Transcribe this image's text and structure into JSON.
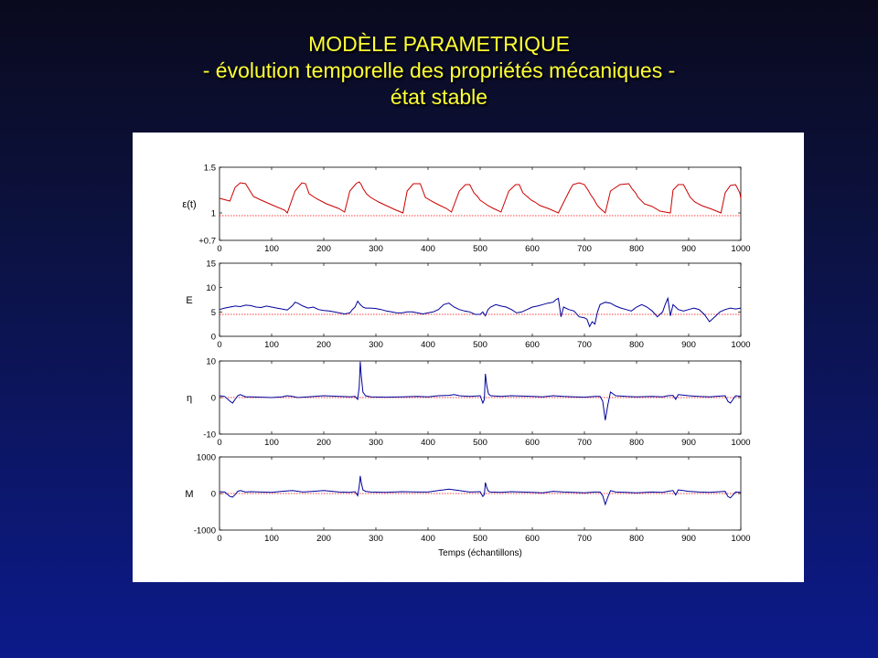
{
  "slide": {
    "title_line1": "MODÈLE PARAMETRIQUE",
    "title_line2": "- évolution temporelle des propriétés mécaniques -",
    "title_line3": "état stable"
  },
  "colors": {
    "background_top": "#0a0a1e",
    "background_bottom": "#0c1a8a",
    "title": "#ffff33",
    "series_red": "#cc0000",
    "series_blue": "#000099",
    "reference_line": "#ff0000"
  },
  "chart_data": [
    {
      "type": "line",
      "ylabel": "ε(t)",
      "xlim": [
        0,
        1000
      ],
      "ylim": [
        0.7,
        1.5
      ],
      "xticks": [
        "0",
        "100",
        "200",
        "300",
        "400",
        "500",
        "600",
        "700",
        "800",
        "900",
        "1000"
      ],
      "yticks": [
        {
          "value": 1.5,
          "label": "1.5"
        },
        {
          "value": 1,
          "label": "1"
        },
        {
          "value": 0.7,
          "label": "+0.7"
        }
      ],
      "reference": 0.97,
      "series_color": "#cc0000",
      "series": [
        {
          "x": [
            0,
            20,
            30,
            40,
            50,
            65,
            80,
            100,
            125,
            130,
            145,
            158,
            165,
            172,
            185,
            205,
            228,
            240,
            250,
            262,
            268,
            272,
            275,
            282,
            290,
            305,
            320,
            335,
            352,
            360,
            372,
            385,
            395,
            410,
            420,
            435,
            445,
            460,
            472,
            480,
            488,
            495,
            500,
            505,
            515,
            525,
            540,
            555,
            568,
            575,
            582,
            590,
            598,
            605,
            615,
            630,
            650,
            672,
            678,
            690,
            700,
            708,
            712,
            718,
            722,
            725,
            730,
            740,
            750,
            768,
            785,
            792,
            798,
            803,
            815,
            830,
            845,
            865,
            870,
            880,
            890,
            903,
            912,
            925,
            945,
            962,
            970,
            980,
            990,
            998,
            1000
          ],
          "y": [
            1.16,
            1.13,
            1.28,
            1.33,
            1.32,
            1.18,
            1.14,
            1.09,
            1.03,
            1.0,
            1.24,
            1.33,
            1.32,
            1.21,
            1.16,
            1.1,
            1.05,
            1.01,
            1.24,
            1.32,
            1.34,
            1.31,
            1.27,
            1.21,
            1.17,
            1.12,
            1.08,
            1.04,
            1.0,
            1.24,
            1.32,
            1.32,
            1.17,
            1.12,
            1.09,
            1.05,
            1.01,
            1.24,
            1.31,
            1.31,
            1.22,
            1.18,
            1.14,
            1.12,
            1.08,
            1.05,
            1.01,
            1.24,
            1.31,
            1.31,
            1.22,
            1.18,
            1.14,
            1.12,
            1.08,
            1.05,
            1.0,
            1.25,
            1.31,
            1.33,
            1.31,
            1.24,
            1.2,
            1.15,
            1.11,
            1.08,
            1.05,
            1.0,
            1.24,
            1.31,
            1.32,
            1.26,
            1.22,
            1.17,
            1.1,
            1.07,
            1.02,
            1.0,
            1.25,
            1.31,
            1.31,
            1.17,
            1.12,
            1.08,
            1.04,
            1.0,
            1.22,
            1.3,
            1.31,
            1.22,
            1.16
          ]
        }
      ]
    },
    {
      "type": "line",
      "ylabel": "E",
      "xlim": [
        0,
        1000
      ],
      "ylim": [
        0,
        15
      ],
      "xticks": [
        "0",
        "100",
        "200",
        "300",
        "400",
        "500",
        "600",
        "700",
        "800",
        "900",
        "1000"
      ],
      "yticks": [
        {
          "value": 15,
          "label": "15"
        },
        {
          "value": 10,
          "label": "10"
        },
        {
          "value": 5,
          "label": "5"
        },
        {
          "value": 0,
          "label": "0"
        }
      ],
      "reference": 4.5,
      "series_color": "#000099",
      "series": [
        {
          "x": [
            0,
            10,
            20,
            30,
            40,
            50,
            60,
            70,
            80,
            90,
            100,
            110,
            120,
            130,
            140,
            145,
            150,
            160,
            170,
            180,
            190,
            200,
            210,
            220,
            230,
            240,
            250,
            255,
            260,
            265,
            270,
            275,
            280,
            290,
            300,
            310,
            320,
            330,
            340,
            350,
            360,
            370,
            380,
            390,
            400,
            410,
            420,
            430,
            440,
            450,
            460,
            470,
            480,
            490,
            500,
            505,
            510,
            515,
            520,
            530,
            540,
            550,
            560,
            570,
            580,
            590,
            600,
            610,
            620,
            630,
            640,
            645,
            650,
            655,
            660,
            670,
            680,
            690,
            700,
            705,
            710,
            715,
            720,
            725,
            730,
            740,
            750,
            760,
            770,
            780,
            790,
            800,
            810,
            820,
            830,
            840,
            850,
            855,
            860,
            865,
            870,
            875,
            880,
            890,
            900,
            910,
            920,
            930,
            940,
            950,
            960,
            970,
            980,
            990,
            1000
          ],
          "y": [
            5.5,
            5.8,
            6.0,
            6.2,
            6.1,
            6.4,
            6.3,
            6.0,
            5.9,
            6.2,
            6.0,
            5.8,
            5.6,
            5.4,
            6.3,
            7.0,
            6.8,
            6.2,
            5.8,
            6.0,
            5.5,
            5.3,
            5.2,
            5.0,
            4.8,
            4.6,
            4.8,
            5.5,
            6.0,
            7.2,
            6.5,
            6.0,
            5.8,
            5.8,
            5.7,
            5.5,
            5.2,
            5.0,
            4.8,
            4.8,
            5.0,
            5.0,
            4.8,
            4.6,
            4.8,
            5.0,
            5.5,
            6.5,
            6.8,
            6.0,
            5.5,
            5.2,
            5.0,
            4.5,
            4.5,
            5.0,
            4.2,
            5.5,
            6.0,
            6.5,
            6.2,
            6.0,
            5.5,
            4.8,
            5.0,
            5.5,
            6.0,
            6.2,
            6.5,
            6.8,
            7.0,
            7.5,
            7.8,
            4.0,
            6.0,
            5.5,
            5.2,
            4.0,
            3.8,
            3.5,
            2.0,
            3.0,
            2.5,
            5.0,
            6.5,
            7.0,
            6.8,
            6.2,
            5.8,
            5.5,
            5.2,
            6.0,
            6.5,
            6.0,
            5.2,
            4.0,
            5.0,
            6.5,
            7.8,
            4.2,
            6.5,
            6.0,
            5.5,
            5.2,
            5.5,
            5.8,
            5.5,
            4.5,
            3.0,
            4.0,
            5.0,
            5.5,
            5.8,
            5.6,
            5.8
          ]
        }
      ]
    },
    {
      "type": "line",
      "ylabel": "η",
      "xlim": [
        0,
        1000
      ],
      "ylim": [
        -10,
        10
      ],
      "xticks": [
        "0",
        "100",
        "200",
        "300",
        "400",
        "500",
        "600",
        "700",
        "800",
        "900",
        "1000"
      ],
      "yticks": [
        {
          "value": 10,
          "label": "10"
        },
        {
          "value": 0,
          "label": "0"
        },
        {
          "value": -10,
          "label": "-10"
        }
      ],
      "reference": 0,
      "series_color": "#000099",
      "series": [
        {
          "x": [
            0,
            10,
            20,
            25,
            30,
            35,
            40,
            50,
            60,
            80,
            100,
            120,
            130,
            140,
            150,
            170,
            200,
            230,
            250,
            260,
            265,
            268,
            270,
            272,
            275,
            280,
            290,
            320,
            350,
            380,
            400,
            420,
            440,
            450,
            460,
            480,
            500,
            505,
            508,
            510,
            513,
            516,
            520,
            540,
            560,
            580,
            600,
            620,
            640,
            660,
            680,
            700,
            720,
            730,
            735,
            740,
            745,
            750,
            760,
            780,
            800,
            830,
            850,
            860,
            870,
            875,
            880,
            900,
            920,
            940,
            960,
            970,
            975,
            980,
            985,
            990,
            1000
          ],
          "y": [
            0.5,
            0.3,
            -1.0,
            -1.5,
            -0.5,
            0.5,
            0.8,
            0.2,
            0.2,
            0.1,
            0,
            0.2,
            0.5,
            0.3,
            0,
            0.2,
            0.5,
            0.3,
            0.2,
            0.3,
            -0.5,
            3.0,
            9.8,
            6.0,
            1.5,
            0.5,
            0.2,
            0.1,
            0.2,
            0.3,
            0.2,
            0.5,
            0.6,
            0.8,
            0.5,
            0.3,
            0.5,
            -1.5,
            -0.5,
            6.5,
            3.0,
            1.0,
            0.5,
            0.3,
            0.5,
            0.4,
            0.3,
            0.2,
            0.5,
            0.3,
            0.2,
            0.1,
            0.3,
            0.3,
            -1.0,
            -6.2,
            -2.0,
            1.5,
            0.5,
            0.3,
            0.2,
            0.3,
            0.2,
            0.5,
            0.6,
            -0.5,
            0.8,
            0.5,
            0.3,
            0.2,
            0.4,
            0.5,
            -1.0,
            -1.5,
            -0.5,
            0.5,
            0.3
          ]
        }
      ]
    },
    {
      "type": "line",
      "ylabel": "M",
      "xlabel": "Temps (échantillons)",
      "xlim": [
        0,
        1000
      ],
      "ylim": [
        -1000,
        1000
      ],
      "xticks": [
        "0",
        "100",
        "200",
        "300",
        "400",
        "500",
        "600",
        "700",
        "800",
        "900",
        "1000"
      ],
      "yticks": [
        {
          "value": 1000,
          "label": "1000"
        },
        {
          "value": 0,
          "label": "0"
        },
        {
          "value": -1000,
          "label": "-1000"
        }
      ],
      "reference": 0,
      "series_color": "#000099",
      "series": [
        {
          "x": [
            0,
            10,
            20,
            25,
            30,
            35,
            40,
            50,
            60,
            80,
            100,
            120,
            140,
            160,
            180,
            200,
            230,
            250,
            260,
            265,
            268,
            270,
            272,
            275,
            280,
            290,
            320,
            350,
            380,
            400,
            420,
            440,
            460,
            480,
            500,
            505,
            508,
            510,
            513,
            516,
            520,
            540,
            560,
            580,
            600,
            620,
            640,
            660,
            680,
            700,
            720,
            730,
            735,
            740,
            745,
            750,
            760,
            780,
            800,
            830,
            850,
            860,
            870,
            875,
            880,
            900,
            920,
            940,
            960,
            970,
            975,
            980,
            985,
            990,
            1000
          ],
          "y": [
            50,
            40,
            -80,
            -100,
            -30,
            60,
            80,
            40,
            50,
            40,
            30,
            60,
            80,
            40,
            60,
            80,
            40,
            30,
            50,
            -60,
            200,
            480,
            300,
            100,
            60,
            40,
            30,
            50,
            40,
            40,
            80,
            120,
            80,
            40,
            50,
            -80,
            -30,
            300,
            150,
            60,
            40,
            30,
            50,
            40,
            30,
            20,
            60,
            40,
            30,
            20,
            40,
            40,
            -60,
            -300,
            -100,
            80,
            40,
            30,
            20,
            40,
            30,
            60,
            80,
            -40,
            100,
            60,
            40,
            30,
            50,
            60,
            -80,
            -120,
            -40,
            40,
            30
          ]
        }
      ]
    }
  ]
}
